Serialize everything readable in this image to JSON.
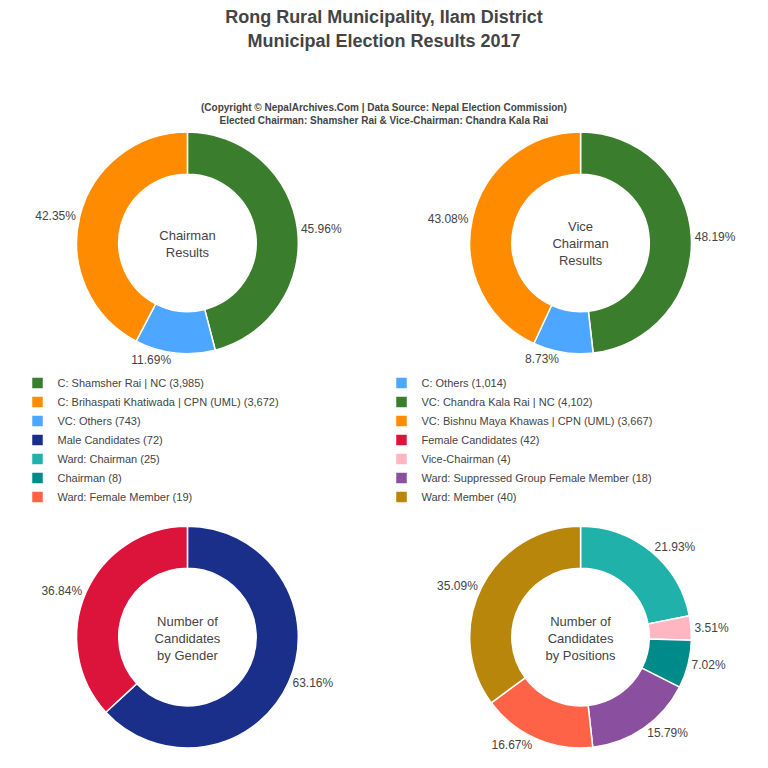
{
  "title": "Rong Rural Municipality, Ilam District\nMunicipal Election Results 2017",
  "subtitle": "(Copyright © NepalArchives.Com | Data Source: Nepal Election Commission)\nElected Chairman: Shamsher Rai & Vice-Chairman: Chandra Kala Rai",
  "chart_data": [
    {
      "type": "pie",
      "title": "Chairman\nResults",
      "categories": [
        "C: Shamsher Rai | NC (3,985)",
        "C: Others (1,014)",
        "C: Brihaspati Khatiwada | CPN (UML) (3,672)"
      ],
      "values": [
        45.96,
        11.69,
        42.35
      ],
      "value_labels": [
        "45.96%",
        "11.69%",
        "42.35%"
      ],
      "colors": [
        "#3a7d2c",
        "#4da6ff",
        "#FF8C00"
      ]
    },
    {
      "type": "pie",
      "title": "Vice\nChairman\nResults",
      "categories": [
        "VC: Chandra Kala Rai | NC (4,102)",
        "VC: Others (743)",
        "VC: Bishnu Maya Khawas | CPN (UML) (3,667)"
      ],
      "values": [
        48.19,
        8.73,
        43.08
      ],
      "value_labels": [
        "48.19%",
        "8.73%",
        "43.08%"
      ],
      "colors": [
        "#3a7d2c",
        "#4da6ff",
        "#FF8C00"
      ]
    },
    {
      "type": "pie",
      "title": "Number of\nCandidates\nby Gender",
      "categories": [
        "Male Candidates (72)",
        "Female Candidates (42)"
      ],
      "values": [
        63.16,
        36.84
      ],
      "value_labels": [
        "63.16%",
        "36.84%"
      ],
      "colors": [
        "#1a2f8a",
        "#DC143C"
      ]
    },
    {
      "type": "pie",
      "title": "Number of\nCandidates\nby Positions",
      "categories": [
        "Ward: Chairman (25)",
        "Vice-Chairman (4)",
        "Chairman (8)",
        "Ward: Suppressed Group Female Member (18)",
        "Ward: Female Member (19)",
        "Ward: Member (40)"
      ],
      "values": [
        21.93,
        3.51,
        7.02,
        15.79,
        16.67,
        35.09
      ],
      "value_labels": [
        "21.93%",
        "3.51%",
        "7.02%",
        "15.79%",
        "16.67%",
        "35.09%"
      ],
      "colors": [
        "#20B2AA",
        "#FFB6C1",
        "#008B8B",
        "#8B4FA0",
        "#FF6347",
        "#B8860B"
      ]
    }
  ]
}
